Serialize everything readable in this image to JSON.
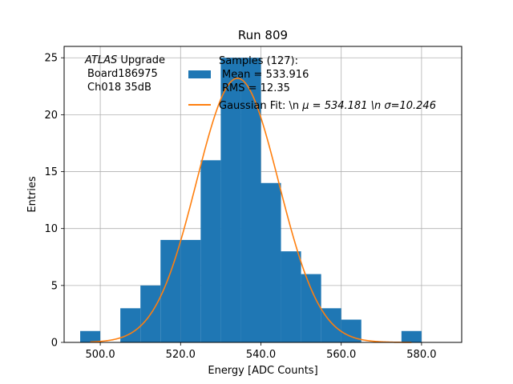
{
  "chart_data": {
    "type": "bar",
    "title": "Run 809",
    "xlabel": "Energy [ADC Counts]",
    "ylabel": "Entries",
    "xlim": [
      491,
      590
    ],
    "ylim": [
      0,
      26
    ],
    "grid": true,
    "x_ticks": [
      500,
      520,
      540,
      560,
      580
    ],
    "x_tick_labels": [
      "500.0",
      "520.0",
      "540.0",
      "560.0",
      "580.0"
    ],
    "y_ticks": [
      0,
      5,
      10,
      15,
      20,
      25
    ],
    "y_tick_labels": [
      "0",
      "5",
      "10",
      "15",
      "20",
      "25"
    ],
    "bin_edges": [
      495,
      500,
      505,
      510,
      515,
      520,
      525,
      530,
      535,
      540,
      545,
      550,
      555,
      560,
      565,
      570,
      575,
      580,
      585
    ],
    "counts": [
      1,
      0,
      3,
      5,
      9,
      9,
      16,
      25,
      25,
      14,
      8,
      6,
      3,
      2,
      0,
      0,
      1,
      0
    ],
    "bar_color": "#1f77b4",
    "fit": {
      "mu": 534.181,
      "sigma": 10.246,
      "amplitude": 23.2,
      "color": "#ff7f0e"
    },
    "annotation": {
      "line1_italic": "ATLAS",
      "line1_rest": " Upgrade",
      "line2": "Board186975",
      "line3": "Ch018 35dB"
    },
    "legend": {
      "placement": "top-center",
      "samples_lines": [
        "Samples (127):",
        "Mean = 533.916",
        "RMS = 12.35"
      ],
      "fit_label_prefix": "Gaussian Fit: \\n ",
      "fit_label_mu": "μ = 534.181 \\n ",
      "fit_label_sigma": "σ=10.246"
    }
  }
}
